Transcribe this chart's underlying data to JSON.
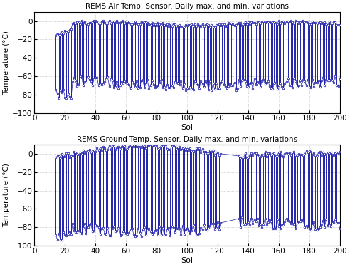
{
  "title1": "REMS Air Temp. Sensor. Daily max. and min. variations",
  "title2": "REMS Ground Temp. Sensor. Daily max. and min. variations",
  "xlabel": "Sol",
  "ylabel": "Temperature (°C)",
  "xlim": [
    0,
    200
  ],
  "ylim": [
    -100,
    10
  ],
  "xticks": [
    0,
    20,
    40,
    60,
    80,
    100,
    120,
    140,
    160,
    180,
    200
  ],
  "yticks": [
    -100,
    -80,
    -60,
    -40,
    -20,
    0
  ],
  "line_color": "#2222aa",
  "bg_color": "#ffffff",
  "grid_color": "#888888",
  "figsize": [
    4.92,
    3.75
  ],
  "dpi": 100,
  "air_sol_start": 14,
  "air_sol_end": 200,
  "ground_sol_start": 14,
  "ground_sol_end": 200,
  "ground_gap_start": 122,
  "ground_gap_end": 133
}
